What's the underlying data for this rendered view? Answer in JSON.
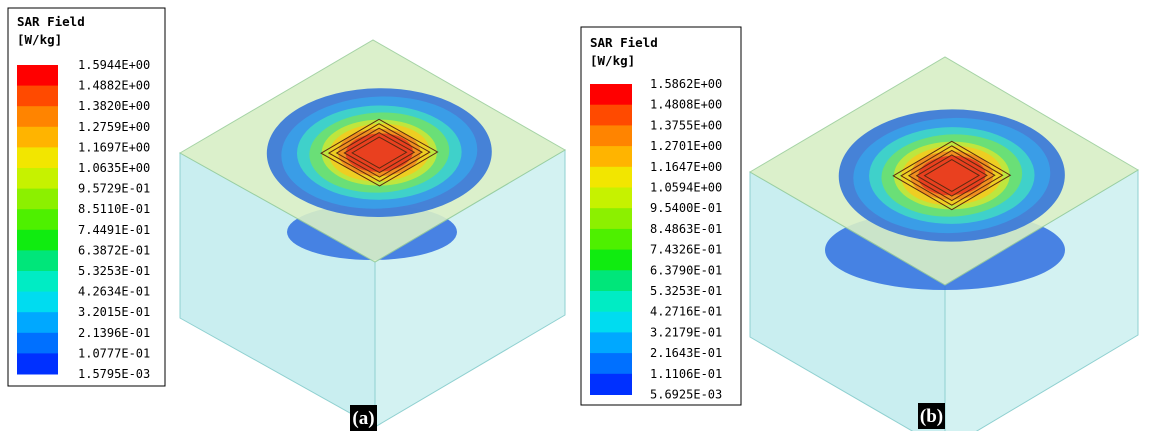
{
  "panels": [
    {
      "legend_title": "SAR Field",
      "legend_unit": "[W/kg]",
      "legend_labels": [
        "1.5944E+00",
        "1.4882E+00",
        "1.3820E+00",
        "1.2759E+00",
        "1.1697E+00",
        "1.0635E+00",
        "9.5729E-01",
        "8.5110E-01",
        "7.4491E-01",
        "6.3872E-01",
        "5.3253E-01",
        "4.2634E-01",
        "3.2015E-01",
        "2.1396E-01",
        "1.0777E-01",
        "1.5795E-03"
      ],
      "caption": "(a)"
    },
    {
      "legend_title": "SAR Field",
      "legend_unit": "[W/kg]",
      "legend_labels": [
        "1.5862E+00",
        "1.4808E+00",
        "1.3755E+00",
        "1.2701E+00",
        "1.1647E+00",
        "1.0594E+00",
        "9.5400E-01",
        "8.4863E-01",
        "7.4326E-01",
        "6.3790E-01",
        "5.3253E-01",
        "4.2716E-01",
        "3.2179E-01",
        "2.1643E-01",
        "1.1106E-01",
        "5.6925E-03"
      ],
      "caption": "(b)"
    }
  ]
}
